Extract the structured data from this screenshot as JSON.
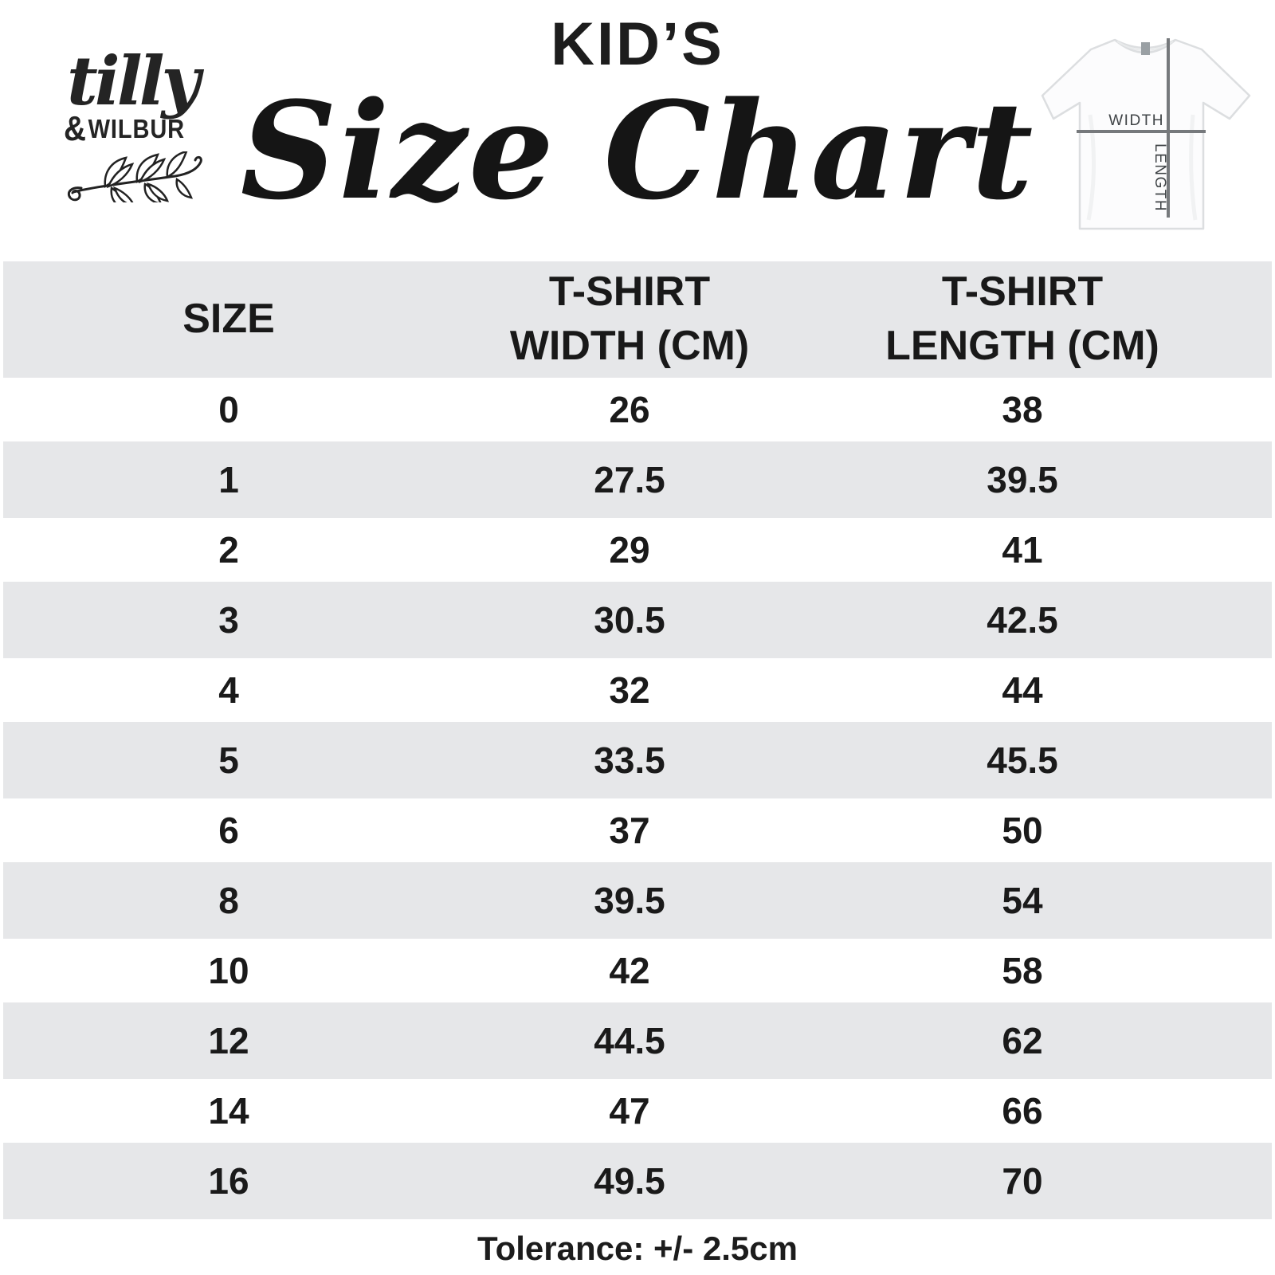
{
  "colors": {
    "band": "#e6e7e9",
    "ink": "#1b1b1b",
    "line_gray": "#76797c",
    "label_gray": "#3f4346"
  },
  "brand": {
    "script": "tilly",
    "amp": "&",
    "caps": "WILBUR"
  },
  "title": {
    "kicker": "KID’S",
    "main": "Size Chart"
  },
  "shirt_diagram": {
    "width_label": "WIDTH",
    "length_label": "LENGTH"
  },
  "table": {
    "columns": [
      {
        "lines": [
          "SIZE",
          ""
        ]
      },
      {
        "lines": [
          "T-SHIRT",
          "WIDTH (CM)"
        ]
      },
      {
        "lines": [
          "T-SHIRT",
          "LENGTH (CM)"
        ]
      }
    ],
    "rows": [
      {
        "size": "0",
        "width": "26",
        "length": "38"
      },
      {
        "size": "1",
        "width": "27.5",
        "length": "39.5"
      },
      {
        "size": "2",
        "width": "29",
        "length": "41"
      },
      {
        "size": "3",
        "width": "30.5",
        "length": "42.5"
      },
      {
        "size": "4",
        "width": "32",
        "length": "44"
      },
      {
        "size": "5",
        "width": "33.5",
        "length": "45.5"
      },
      {
        "size": "6",
        "width": "37",
        "length": "50"
      },
      {
        "size": "8",
        "width": "39.5",
        "length": "54"
      },
      {
        "size": "10",
        "width": "42",
        "length": "58"
      },
      {
        "size": "12",
        "width": "44.5",
        "length": "62"
      },
      {
        "size": "14",
        "width": "47",
        "length": "66"
      },
      {
        "size": "16",
        "width": "49.5",
        "length": "70"
      }
    ]
  },
  "footer": {
    "tolerance": "Tolerance: +/- 2.5cm"
  },
  "chart_data": {
    "type": "table",
    "title": "KID'S Size Chart",
    "columns": [
      "SIZE",
      "T-SHIRT WIDTH (CM)",
      "T-SHIRT LENGTH (CM)"
    ],
    "rows": [
      [
        0,
        26,
        38
      ],
      [
        1,
        27.5,
        39.5
      ],
      [
        2,
        29,
        41
      ],
      [
        3,
        30.5,
        42.5
      ],
      [
        4,
        32,
        44
      ],
      [
        5,
        33.5,
        45.5
      ],
      [
        6,
        37,
        50
      ],
      [
        8,
        39.5,
        54
      ],
      [
        10,
        42,
        58
      ],
      [
        12,
        44.5,
        62
      ],
      [
        14,
        47,
        66
      ],
      [
        16,
        49.5,
        70
      ]
    ],
    "footnote": "Tolerance: +/- 2.5cm"
  }
}
